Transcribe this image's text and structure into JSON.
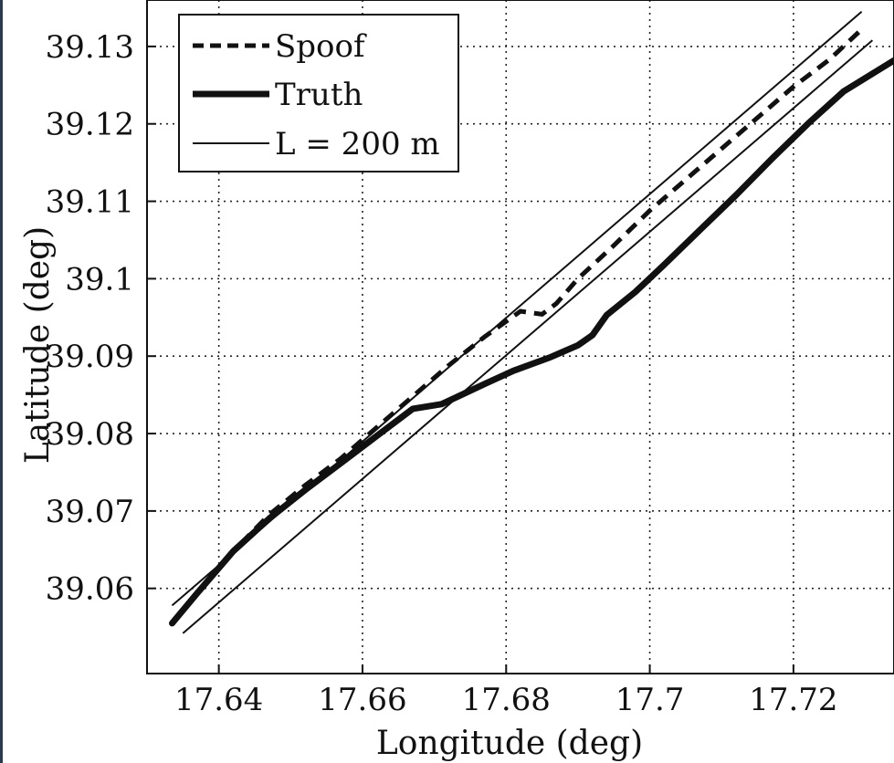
{
  "chart_data": {
    "type": "line",
    "title": "",
    "xlabel": "Longitude (deg)",
    "ylabel": "Latitude (deg)",
    "xlim": [
      17.63,
      17.734
    ],
    "ylim": [
      39.049,
      39.136
    ],
    "x_ticks": [
      17.64,
      17.66,
      17.68,
      17.7,
      17.72
    ],
    "x_tick_labels": [
      "17.64",
      "17.66",
      "17.68",
      "17.7",
      "17.72"
    ],
    "y_ticks": [
      39.06,
      39.07,
      39.08,
      39.09,
      39.1,
      39.11,
      39.12,
      39.13
    ],
    "y_tick_labels": [
      "39.06",
      "39.07",
      "39.08",
      "39.09",
      "39.1",
      "39.11",
      "39.12",
      "39.13"
    ],
    "grid": true,
    "legend_position": "top-left",
    "legend": [
      {
        "label": "Spoof",
        "style": "dashed"
      },
      {
        "label": "Truth",
        "style": "thick"
      },
      {
        "label": "L = 200 m",
        "style": "thin"
      }
    ],
    "series": [
      {
        "name": "Spoof",
        "style": "dashed",
        "x": [
          17.6335,
          17.637,
          17.642,
          17.647,
          17.652,
          17.657,
          17.662,
          17.667,
          17.672,
          17.677,
          17.682,
          17.685,
          17.687,
          17.69,
          17.695,
          17.7,
          17.705,
          17.71,
          17.715,
          17.72,
          17.725,
          17.7295
        ],
        "y": [
          39.0555,
          39.0594,
          39.0648,
          39.0695,
          39.0733,
          39.0768,
          39.0808,
          39.0848,
          39.0888,
          39.0925,
          39.0958,
          39.0954,
          39.0968,
          39.1,
          39.1043,
          39.1088,
          39.1128,
          39.1168,
          39.1208,
          39.1248,
          39.1283,
          39.1322
        ]
      },
      {
        "name": "Truth",
        "style": "thick",
        "x": [
          17.6335,
          17.637,
          17.642,
          17.647,
          17.652,
          17.657,
          17.662,
          17.667,
          17.671,
          17.674,
          17.677,
          17.681,
          17.686,
          17.69,
          17.692,
          17.694,
          17.698,
          17.702,
          17.707,
          17.712,
          17.717,
          17.722,
          17.727,
          17.734
        ],
        "y": [
          39.0555,
          39.0594,
          39.0648,
          39.069,
          39.0727,
          39.0762,
          39.0797,
          39.0832,
          39.0838,
          39.0851,
          39.0864,
          39.0881,
          39.0898,
          39.0914,
          39.0927,
          39.0953,
          39.0983,
          39.1018,
          39.1063,
          39.1108,
          39.1155,
          39.12,
          39.1242,
          39.1282
        ]
      },
      {
        "name": "L = 200 m (upper)",
        "style": "thin",
        "x": [
          17.6335,
          17.7295
        ],
        "y": [
          39.0578,
          39.1345
        ]
      },
      {
        "name": "L = 200 m (lower)",
        "style": "thin",
        "x": [
          17.635,
          17.731
        ],
        "y": [
          39.0542,
          39.1308
        ]
      }
    ]
  }
}
